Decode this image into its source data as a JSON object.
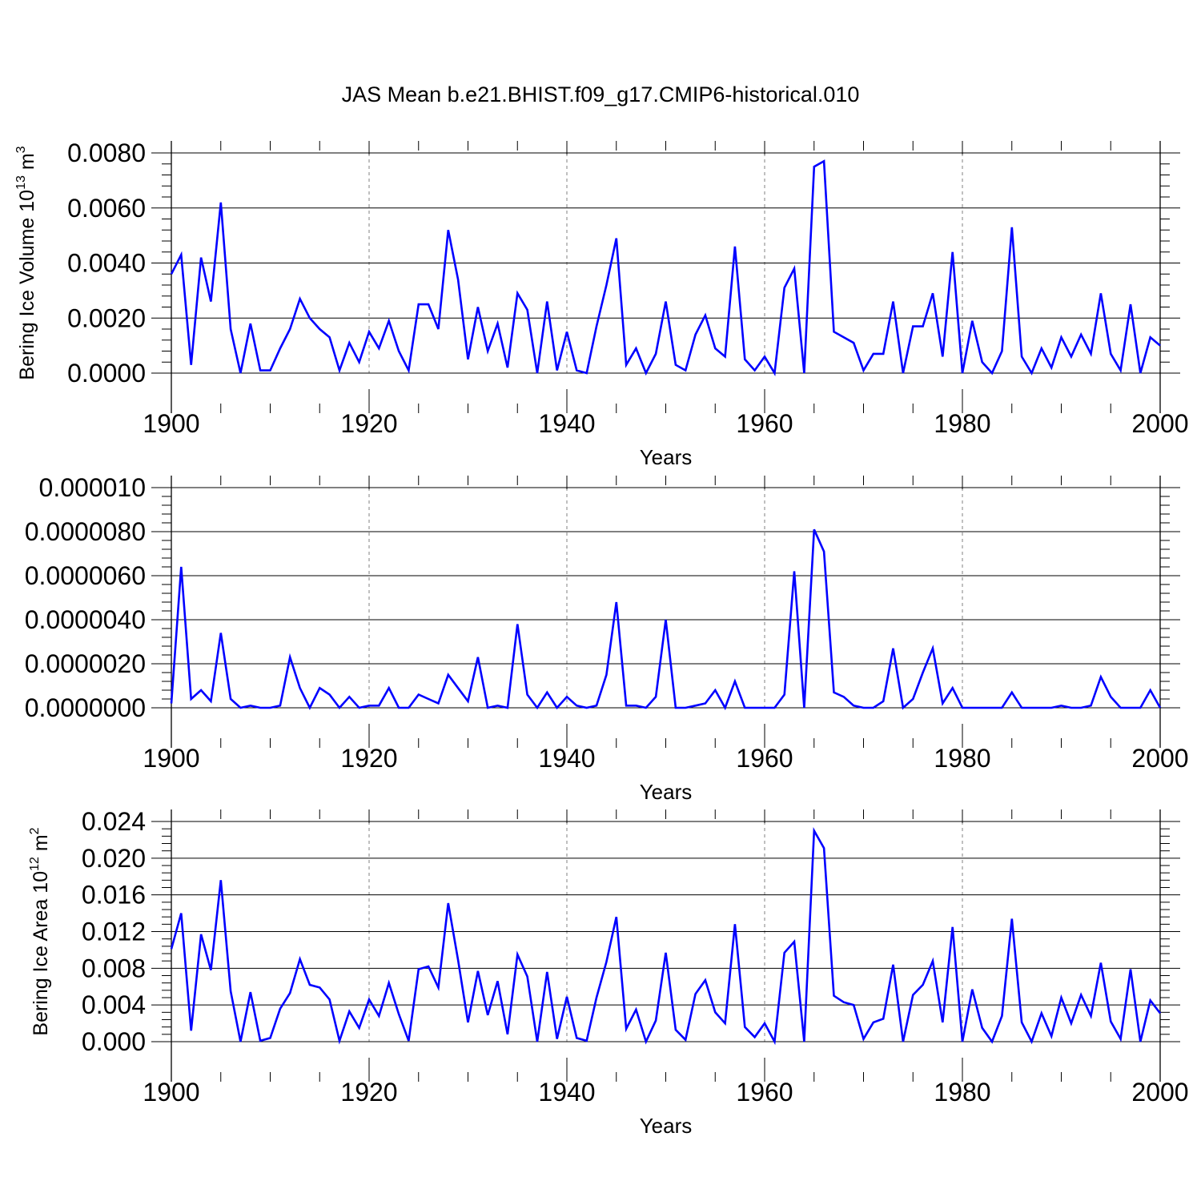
{
  "title": "JAS Mean b.e21.BHIST.f09_g17.CMIP6-historical.010",
  "line_color": "#0000ff",
  "chart_data": [
    {
      "type": "line",
      "ylabel": "Bering Ice Volume 10",
      "ylabel_exp": "13",
      "ylabel_unit": " m",
      "ylabel_unit_exp": "3",
      "xlabel": "Years",
      "xlim": [
        1900,
        2000
      ],
      "ylim": [
        0,
        0.008
      ],
      "x_ticks": [
        1900,
        1920,
        1940,
        1960,
        1980,
        2000
      ],
      "x_tick_labels": [
        "1900",
        "1920",
        "1940",
        "1960",
        "1980",
        "2000"
      ],
      "y_ticks": [
        0,
        0.002,
        0.004,
        0.006,
        0.008
      ],
      "y_tick_labels": [
        "0.0000",
        "0.0020",
        "0.0040",
        "0.0060",
        "0.0080"
      ],
      "x_start": 1900,
      "values": [
        0.0036,
        0.0043,
        0.0003,
        0.0042,
        0.0026,
        0.0062,
        0.0016,
        0.0,
        0.0018,
        0.0001,
        0.0001,
        0.0009,
        0.0016,
        0.0027,
        0.002,
        0.0016,
        0.0013,
        0.0001,
        0.0011,
        0.0004,
        0.0015,
        0.0009,
        0.0019,
        0.0008,
        0.0001,
        0.0025,
        0.0025,
        0.0016,
        0.0052,
        0.0034,
        0.0005,
        0.0024,
        0.0008,
        0.0018,
        0.0002,
        0.0029,
        0.0023,
        0.0,
        0.0026,
        0.0001,
        0.0015,
        0.0001,
        0.0,
        0.0017,
        0.0032,
        0.0049,
        0.0003,
        0.0009,
        0.0,
        0.0007,
        0.0026,
        0.0003,
        0.0001,
        0.0014,
        0.0021,
        0.0009,
        0.0006,
        0.0046,
        0.0005,
        0.0001,
        0.0006,
        0.0,
        0.0031,
        0.0038,
        0.0,
        0.0075,
        0.0077,
        0.0015,
        0.0013,
        0.0011,
        0.0001,
        0.0007,
        0.0007,
        0.0026,
        0.0,
        0.0017,
        0.0017,
        0.0029,
        0.0006,
        0.0044,
        0.0,
        0.0019,
        0.0004,
        0.0,
        0.0008,
        0.0053,
        0.0006,
        0.0,
        0.0009,
        0.0002,
        0.0013,
        0.0006,
        0.0014,
        0.0007,
        0.0029,
        0.0007,
        0.0001,
        0.0025,
        0.0,
        0.0013,
        0.001
      ]
    },
    {
      "type": "line",
      "ylabel": "",
      "xlabel": "Years",
      "xlim": [
        1900,
        2000
      ],
      "ylim": [
        0,
        1e-05
      ],
      "x_ticks": [
        1900,
        1920,
        1940,
        1960,
        1980,
        2000
      ],
      "x_tick_labels": [
        "1900",
        "1920",
        "1940",
        "1960",
        "1980",
        "2000"
      ],
      "y_ticks": [
        0,
        2e-06,
        4e-06,
        6e-06,
        8e-06,
        1e-05
      ],
      "y_tick_labels": [
        "0.0000000",
        "0.0000020",
        "0.0000040",
        "0.0000060",
        "0.0000080",
        "0.000010"
      ],
      "x_start": 1900,
      "values": [
        2e-07,
        6.4e-06,
        4e-07,
        8e-07,
        3e-07,
        3.4e-06,
        4e-07,
        0.0,
        1e-07,
        0.0,
        0.0,
        1e-07,
        2.3e-06,
        9e-07,
        0.0,
        9e-07,
        6e-07,
        0.0,
        5e-07,
        0.0,
        1e-07,
        1e-07,
        9e-07,
        0.0,
        0.0,
        6e-07,
        4e-07,
        2e-07,
        1.5e-06,
        9e-07,
        3e-07,
        2.3e-06,
        0.0,
        1e-07,
        0.0,
        3.8e-06,
        6e-07,
        0.0,
        7e-07,
        0.0,
        5e-07,
        1e-07,
        0.0,
        1e-07,
        1.5e-06,
        4.8e-06,
        1e-07,
        1e-07,
        0.0,
        5e-07,
        4e-06,
        0.0,
        0.0,
        1e-07,
        2e-07,
        8e-07,
        0.0,
        1.2e-06,
        0.0,
        0.0,
        0.0,
        0.0,
        6e-07,
        6.2e-06,
        0.0,
        8.1e-06,
        7.1e-06,
        7e-07,
        5e-07,
        1e-07,
        0.0,
        0.0,
        3e-07,
        2.7e-06,
        0.0,
        4e-07,
        1.6e-06,
        2.7e-06,
        2e-07,
        9e-07,
        0.0,
        0.0,
        0.0,
        0.0,
        0.0,
        7e-07,
        0.0,
        0.0,
        0.0,
        0.0,
        1e-07,
        0.0,
        0.0,
        1e-07,
        1.4e-06,
        5e-07,
        0.0,
        0.0,
        0.0,
        8e-07,
        0.0
      ]
    },
    {
      "type": "line",
      "ylabel": "Bering Ice Area 10",
      "ylabel_exp": "12",
      "ylabel_unit": " m",
      "ylabel_unit_exp": "2",
      "xlabel": "Years",
      "xlim": [
        1900,
        2000
      ],
      "ylim": [
        0,
        0.024
      ],
      "x_ticks": [
        1900,
        1920,
        1940,
        1960,
        1980,
        2000
      ],
      "x_tick_labels": [
        "1900",
        "1920",
        "1940",
        "1960",
        "1980",
        "2000"
      ],
      "y_ticks": [
        0,
        0.004,
        0.008,
        0.012,
        0.016,
        0.02,
        0.024
      ],
      "y_tick_labels": [
        "0.000",
        "0.004",
        "0.008",
        "0.012",
        "0.016",
        "0.020",
        "0.024"
      ],
      "x_start": 1900,
      "values": [
        0.0101,
        0.014,
        0.0012,
        0.0117,
        0.0078,
        0.0176,
        0.0055,
        0.0,
        0.0054,
        0.0001,
        0.0004,
        0.0036,
        0.0053,
        0.009,
        0.0062,
        0.0059,
        0.0046,
        0.0001,
        0.0033,
        0.0015,
        0.0046,
        0.0028,
        0.0064,
        0.003,
        0.0001,
        0.0079,
        0.0082,
        0.0059,
        0.0151,
        0.0089,
        0.0021,
        0.0077,
        0.0029,
        0.0066,
        0.0008,
        0.0095,
        0.0071,
        0.0,
        0.0076,
        0.0003,
        0.0049,
        0.0004,
        0.0001,
        0.0048,
        0.0087,
        0.0136,
        0.0014,
        0.0035,
        0.0,
        0.0023,
        0.0097,
        0.0013,
        0.0002,
        0.0052,
        0.0067,
        0.0032,
        0.002,
        0.0128,
        0.0016,
        0.0005,
        0.002,
        0.0,
        0.0097,
        0.0109,
        0.0,
        0.023,
        0.0211,
        0.005,
        0.0043,
        0.004,
        0.0003,
        0.0021,
        0.0025,
        0.0084,
        0.0,
        0.0051,
        0.0062,
        0.0088,
        0.0021,
        0.0125,
        0.0,
        0.0057,
        0.0015,
        0.0,
        0.0028,
        0.0134,
        0.0021,
        0.0,
        0.0031,
        0.0006,
        0.0048,
        0.002,
        0.0051,
        0.0028,
        0.0086,
        0.0022,
        0.0003,
        0.0079,
        0.0,
        0.0045,
        0.0031
      ]
    }
  ]
}
